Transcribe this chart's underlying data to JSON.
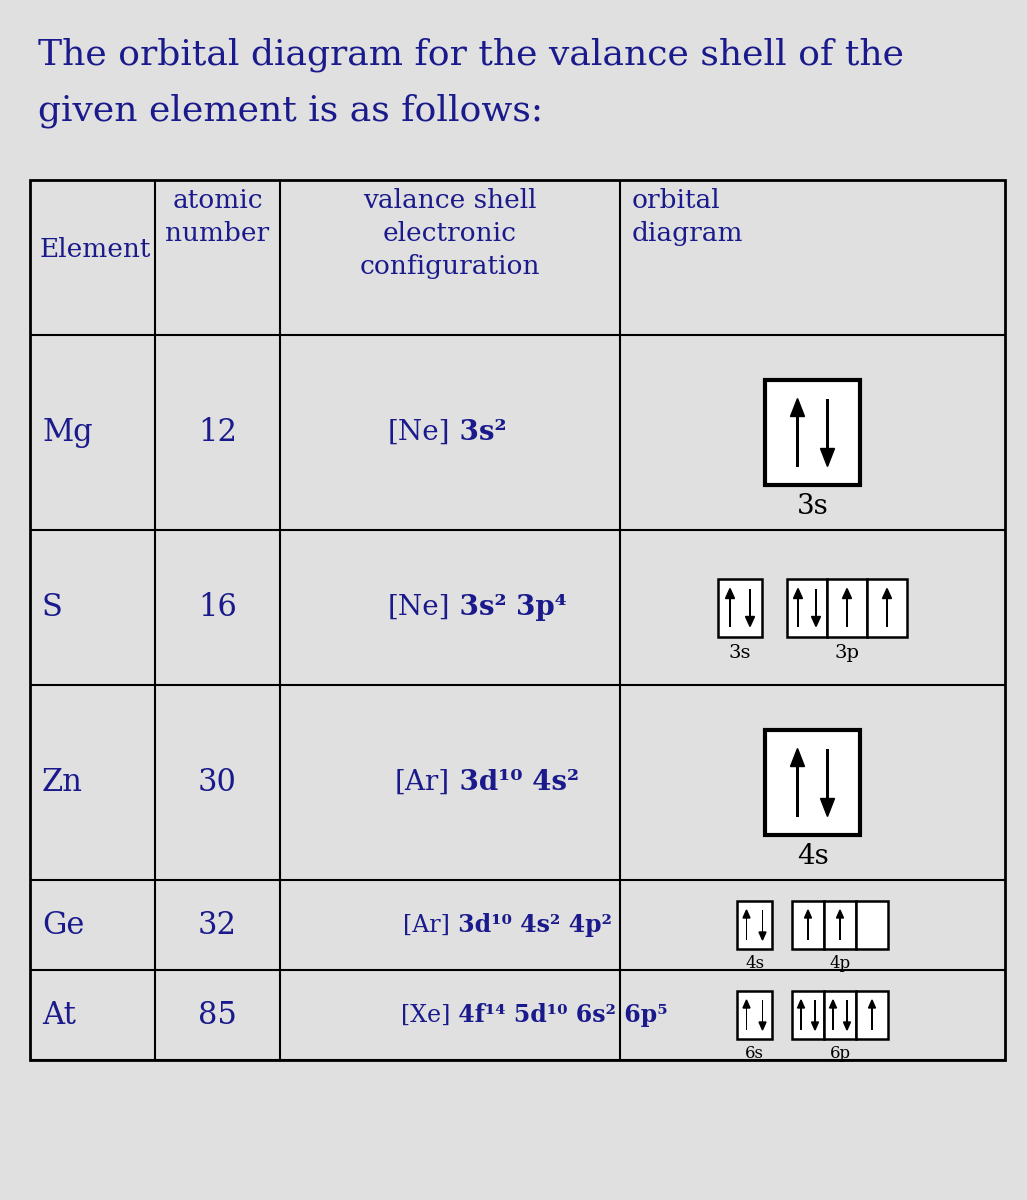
{
  "title_line1": "The orbital diagram for the valance shell of the",
  "title_line2": "given element is as follows:",
  "title_color": "#1a1a8c",
  "bg_color": "#e0e0e0",
  "text_color": "#1a1a8c",
  "rows": [
    {
      "element": "Mg",
      "atomic_number": "12",
      "config_prefix": "[Ne]",
      "config_suffix": " 3s²",
      "diagram_type": "single_box",
      "label": "3s"
    },
    {
      "element": "S",
      "atomic_number": "16",
      "config_prefix": "[Ne]",
      "config_suffix": " 3s² 3p⁴",
      "diagram_type": "s_3p",
      "label_s": "3s",
      "label_p": "3p",
      "s_electrons": 2,
      "p_electrons": [
        2,
        1,
        1
      ]
    },
    {
      "element": "Zn",
      "atomic_number": "30",
      "config_prefix": "[Ar]",
      "config_suffix": " 3d¹⁰ 4s²",
      "diagram_type": "single_box",
      "label": "4s"
    },
    {
      "element": "Ge",
      "atomic_number": "32",
      "config_prefix": "[Ar]",
      "config_suffix": " 3d¹⁰ 4s² 4p²",
      "diagram_type": "s_3p",
      "label_s": "4s",
      "label_p": "4p",
      "s_electrons": 2,
      "p_electrons": [
        1,
        1,
        0
      ]
    },
    {
      "element": "At",
      "atomic_number": "85",
      "config_prefix": "[Xe]",
      "config_suffix": " 4f¹⁴ 5d¹⁰ 6s² 6p⁵",
      "diagram_type": "s_3p",
      "label_s": "6s",
      "label_p": "6p",
      "s_electrons": 2,
      "p_electrons": [
        2,
        2,
        1
      ]
    }
  ]
}
